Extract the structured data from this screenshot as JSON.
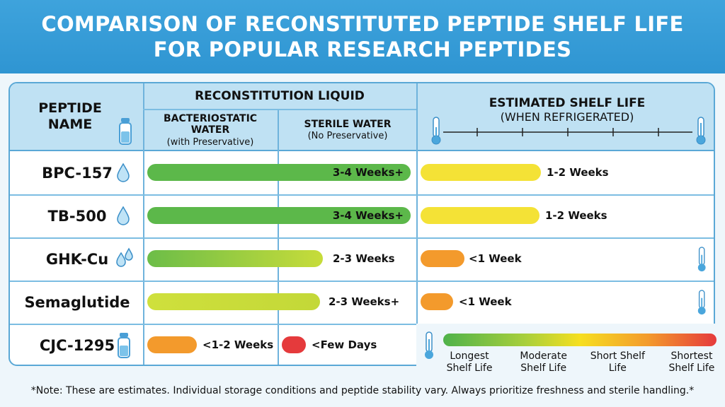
{
  "title": "COMPARISON OF RECONSTITUTED PEPTIDE SHELF LIFE FOR POPULAR RESEARCH PEPTIDES",
  "header": {
    "peptide_name": "PEPTIDE NAME",
    "reconstitution": "RECONSTITUTION LIQUID",
    "bacteriostatic": "BACTERIOSTATIC WATER",
    "bacteriostatic_sub": "(with Preservative)",
    "sterile": "STERILE WATER",
    "sterile_sub": "(No Preservative)",
    "shelf": "ESTIMATED SHELF LIFE",
    "shelf_sub": "(WHEN REFRIGERATED)"
  },
  "colors": {
    "green": "#5cb84a",
    "yellow_green": "#c8dc3a",
    "yellow": "#f4e236",
    "orange": "#f39a2c",
    "red": "#e53a3c",
    "header_bg": "#bfe1f3",
    "title_bg": "#3ea3dc"
  },
  "chart_data": {
    "type": "table",
    "columns": [
      "Peptide",
      "Bacteriostatic Water",
      "Sterile Water",
      "Estimated Shelf Life"
    ],
    "rows": [
      {
        "peptide": "BPC-157",
        "icon": "water-drop-icon",
        "bacteriostatic": "3-4 Weeks+",
        "bact_color": "green",
        "shelf": "1-2 Weeks",
        "shelf_color": "yellow"
      },
      {
        "peptide": "TB-500",
        "icon": "water-drop-icon",
        "bacteriostatic": "3-4 Weeks+",
        "bact_color": "green",
        "shelf": "1-2 Weeks",
        "shelf_color": "yellow"
      },
      {
        "peptide": "GHK-Cu",
        "icon": "water-drops-icon",
        "bacteriostatic": "2-3 Weeks",
        "bact_color": "green-yellow",
        "shelf": "<1 Week",
        "shelf_color": "orange"
      },
      {
        "peptide": "Semaglutide",
        "icon": "",
        "bacteriostatic": "2-3 Weeks+",
        "bact_color": "yellow-green",
        "shelf": "<1 Week",
        "shelf_color": "orange"
      },
      {
        "peptide": "CJC-1295",
        "icon": "vial-icon",
        "bacteriostatic": "<1-2 Weeks",
        "bact_color": "orange",
        "sterile": "<Few Days",
        "sterile_color": "red"
      }
    ],
    "legend": [
      "Longest Shelf Life",
      "Moderate Shelf Life",
      "Short Shelf Life",
      "Shortest Shelf Life"
    ]
  },
  "note": "*Note: These are estimates. Individual storage conditions and peptide stability vary. Always prioritize freshness and sterile handling.*"
}
